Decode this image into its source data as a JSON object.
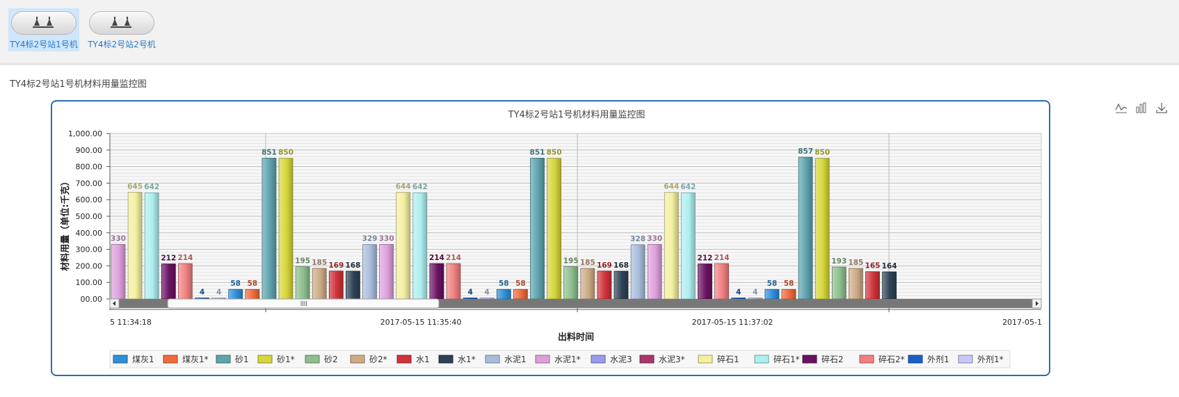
{
  "stations": [
    {
      "label": "TY4标2号站1号机",
      "active": true
    },
    {
      "label": "TY4标2号站2号机",
      "active": false
    }
  ],
  "page_title": "TY4标2号站1号机材料用量监控图",
  "toolbar_icons": [
    "line-chart-icon",
    "bar-chart-icon",
    "download-icon"
  ],
  "chart_data": {
    "type": "bar",
    "title": "TY4标2号站1号机材料用量监控图",
    "xlabel": "出料时间",
    "ylabel": "材料用量（单位:千克）",
    "ylim": [
      0,
      1000
    ],
    "yticks": [
      "1,000.00",
      "900.00",
      "800.00",
      "700.00",
      "600.00",
      "500.00",
      "400.00",
      "300.00",
      "200.00",
      "100.00",
      "00.00"
    ],
    "x_tick_labels": [
      "5 11:34:18",
      "2017-05-15 11:35:40",
      "2017-05-15 11:37:02",
      "2017-05-1"
    ],
    "legend_position": "bottom",
    "grid": true,
    "series": [
      {
        "name": "煤灰1",
        "color": "#2f8fd8"
      },
      {
        "name": "煤灰1*",
        "color": "#ee6a3c"
      },
      {
        "name": "砂1",
        "color": "#5fa3ae"
      },
      {
        "name": "砂1*",
        "color": "#d6d63a"
      },
      {
        "name": "砂2",
        "color": "#8dbf8d"
      },
      {
        "name": "砂2*",
        "color": "#cdab87"
      },
      {
        "name": "水1",
        "color": "#d0333a"
      },
      {
        "name": "水1*",
        "color": "#2e4255"
      },
      {
        "name": "水泥1",
        "color": "#a8bddc"
      },
      {
        "name": "水泥1*",
        "color": "#dea0dc"
      },
      {
        "name": "水泥3",
        "color": "#9a9aee"
      },
      {
        "name": "水泥3*",
        "color": "#a8386a"
      },
      {
        "name": "碎石1",
        "color": "#f3f0a0"
      },
      {
        "name": "碎石1*",
        "color": "#aeeff0"
      },
      {
        "name": "碎石2",
        "color": "#6a1262"
      },
      {
        "name": "碎石2*",
        "color": "#f08080"
      },
      {
        "name": "外剂1",
        "color": "#1c5fc8"
      },
      {
        "name": "外剂1*",
        "color": "#c8c8f8"
      }
    ],
    "bars": [
      {
        "series": "水泥1*",
        "value": 330,
        "label": "330"
      },
      {
        "series": "碎石1",
        "value": 645,
        "label": "645"
      },
      {
        "series": "碎石1*",
        "value": 642,
        "label": "642"
      },
      {
        "series": "碎石2",
        "value": 212,
        "label": "212"
      },
      {
        "series": "碎石2*",
        "value": 214,
        "label": "214"
      },
      {
        "series": "外剂1",
        "value": 4,
        "label": "4"
      },
      {
        "series": "外剂1*",
        "value": 4,
        "label": "4"
      },
      {
        "series": "煤灰1",
        "value": 58,
        "label": "58"
      },
      {
        "series": "煤灰1*",
        "value": 58,
        "label": "58"
      },
      {
        "series": "砂1",
        "value": 851,
        "label": "851"
      },
      {
        "series": "砂1*",
        "value": 850,
        "label": "850"
      },
      {
        "series": "砂2",
        "value": 195,
        "label": "195"
      },
      {
        "series": "砂2*",
        "value": 185,
        "label": "185"
      },
      {
        "series": "水1",
        "value": 169,
        "label": "169"
      },
      {
        "series": "水1*",
        "value": 168,
        "label": "168"
      },
      {
        "series": "水泥1",
        "value": 329,
        "label": "329"
      },
      {
        "series": "水泥1*",
        "value": 330,
        "label": "330"
      },
      {
        "series": "碎石1",
        "value": 644,
        "label": "644"
      },
      {
        "series": "碎石1*",
        "value": 642,
        "label": "642"
      },
      {
        "series": "碎石2",
        "value": 214,
        "label": "214"
      },
      {
        "series": "碎石2*",
        "value": 214,
        "label": "214"
      },
      {
        "series": "外剂1",
        "value": 4,
        "label": "4"
      },
      {
        "series": "外剂1*",
        "value": 4,
        "label": "4"
      },
      {
        "series": "煤灰1",
        "value": 58,
        "label": "58"
      },
      {
        "series": "煤灰1*",
        "value": 58,
        "label": "58"
      },
      {
        "series": "砂1",
        "value": 851,
        "label": "851"
      },
      {
        "series": "砂1*",
        "value": 850,
        "label": "850"
      },
      {
        "series": "砂2",
        "value": 195,
        "label": "195"
      },
      {
        "series": "砂2*",
        "value": 185,
        "label": "185"
      },
      {
        "series": "水1",
        "value": 169,
        "label": "169"
      },
      {
        "series": "水1*",
        "value": 168,
        "label": "168"
      },
      {
        "series": "水泥1",
        "value": 328,
        "label": "328"
      },
      {
        "series": "水泥1*",
        "value": 330,
        "label": "330"
      },
      {
        "series": "碎石1",
        "value": 644,
        "label": "644"
      },
      {
        "series": "碎石1*",
        "value": 642,
        "label": "642"
      },
      {
        "series": "碎石2",
        "value": 212,
        "label": "212"
      },
      {
        "series": "碎石2*",
        "value": 214,
        "label": "214"
      },
      {
        "series": "外剂1",
        "value": 4,
        "label": "4"
      },
      {
        "series": "外剂1*",
        "value": 4,
        "label": "4"
      },
      {
        "series": "煤灰1",
        "value": 58,
        "label": "58"
      },
      {
        "series": "煤灰1*",
        "value": 58,
        "label": "58"
      },
      {
        "series": "砂1",
        "value": 857,
        "label": "857"
      },
      {
        "series": "砂1*",
        "value": 850,
        "label": "850"
      },
      {
        "series": "砂2",
        "value": 193,
        "label": "193"
      },
      {
        "series": "砂2*",
        "value": 185,
        "label": "185"
      },
      {
        "series": "水1",
        "value": 165,
        "label": "165"
      },
      {
        "series": "水1*",
        "value": 164,
        "label": "164"
      }
    ]
  }
}
